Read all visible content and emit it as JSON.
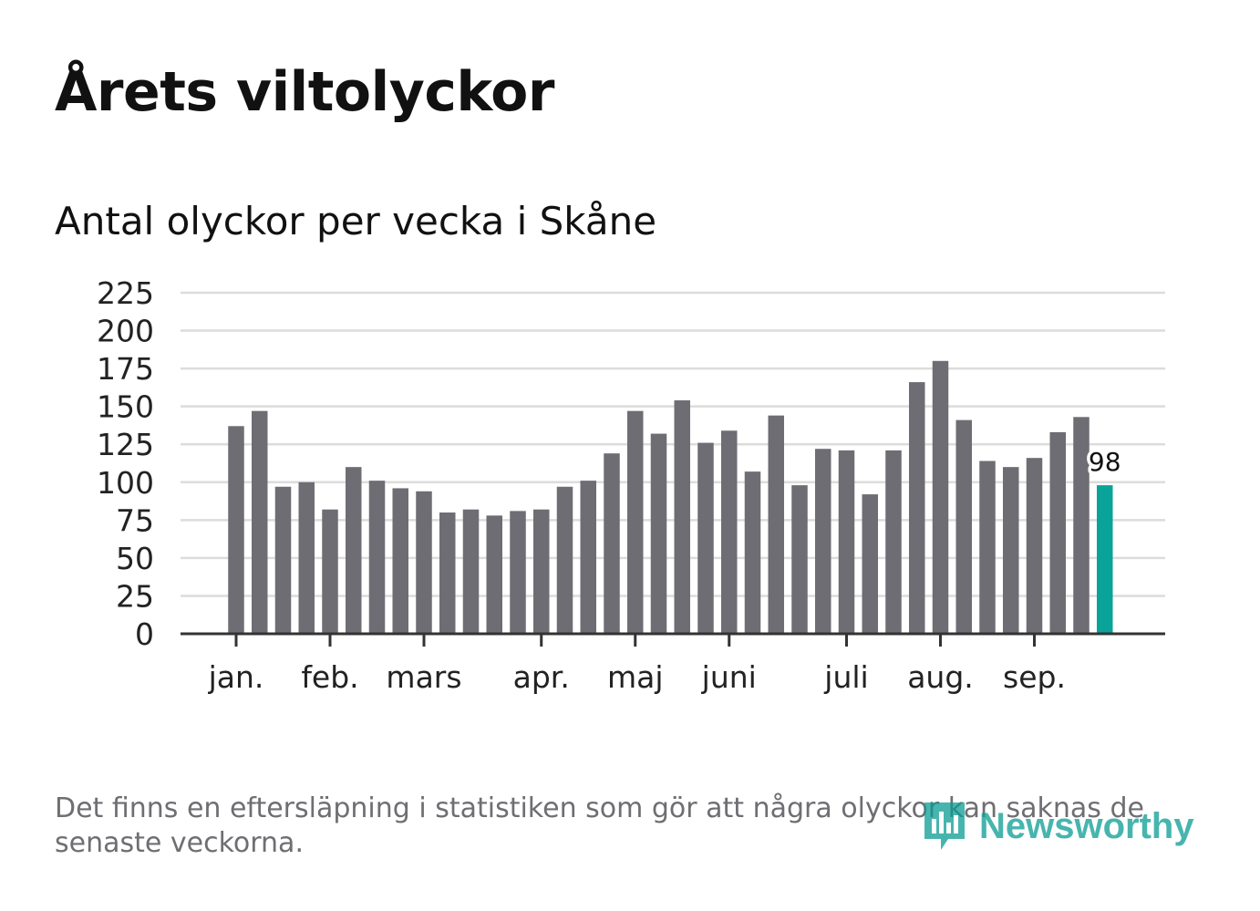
{
  "title": "Årets viltolyckor",
  "subtitle": "Antal olyckor per vecka i Skåne",
  "footnote": "Det finns en eftersläpning i statistiken som gör att några olyckor kan saknas de senaste veckorna.",
  "logo": {
    "text": "Newsworthy",
    "icon": "newsworthy-logo-icon"
  },
  "colors": {
    "bar": "#6e6d74",
    "highlight": "#0aa39a",
    "grid": "#dcdcdc",
    "axis": "#333333"
  },
  "chart_data": {
    "type": "bar",
    "title": "Antal olyckor per vecka i Skåne",
    "xlabel": "",
    "ylabel": "",
    "ylim": [
      0,
      225
    ],
    "yticks": [
      0,
      25,
      50,
      75,
      100,
      125,
      150,
      175,
      200,
      225
    ],
    "weeks": [
      1,
      2,
      3,
      4,
      5,
      6,
      7,
      8,
      9,
      10,
      11,
      12,
      13,
      14,
      15,
      16,
      17,
      18,
      19,
      20,
      21,
      22,
      23,
      24,
      25,
      26,
      27,
      28,
      29,
      30,
      31,
      32,
      33,
      34,
      35,
      36,
      37,
      38
    ],
    "values": [
      137,
      147,
      97,
      100,
      82,
      110,
      101,
      96,
      94,
      80,
      82,
      78,
      81,
      82,
      97,
      101,
      119,
      147,
      132,
      154,
      126,
      134,
      107,
      144,
      98,
      122,
      121,
      92,
      121,
      166,
      180,
      141,
      114,
      110,
      116,
      133,
      143,
      98
    ],
    "highlight_index": 37,
    "data_label": "98",
    "month_labels": [
      {
        "label": "jan.",
        "week": 1
      },
      {
        "label": "feb.",
        "week": 5
      },
      {
        "label": "mars",
        "week": 9
      },
      {
        "label": "apr.",
        "week": 14
      },
      {
        "label": "maj",
        "week": 18
      },
      {
        "label": "juni",
        "week": 22
      },
      {
        "label": "juli",
        "week": 27
      },
      {
        "label": "aug.",
        "week": 31
      },
      {
        "label": "sep.",
        "week": 35
      }
    ],
    "grid": true,
    "legend": "none"
  }
}
